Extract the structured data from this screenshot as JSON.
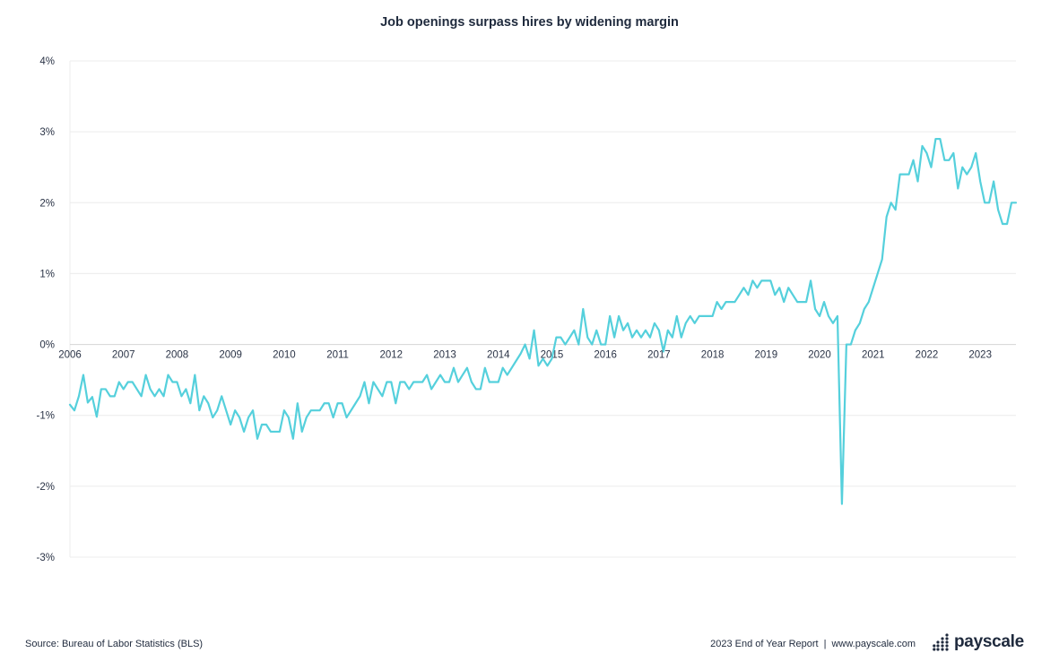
{
  "title": "Job openings surpass hires by widening margin",
  "footer": {
    "source": "Source: Bureau of Labor Statistics (BLS)",
    "report": "2023 End of Year Report",
    "separator": "|",
    "website": "www.payscale.com",
    "logo_text": "payscale"
  },
  "colors": {
    "line": "#55d0dc",
    "grid": "#ececec",
    "zero_line": "#d4d4d4",
    "text": "#1f2a3d"
  },
  "chart_data": {
    "type": "line",
    "title": "Job openings surpass hires by widening margin",
    "xlabel": "",
    "ylabel": "",
    "y_unit": "%",
    "ylim": [
      -3,
      4
    ],
    "yticks": [
      4,
      3,
      2,
      1,
      0,
      -1,
      -2,
      -3
    ],
    "ytick_labels": [
      "4%",
      "3%",
      "2%",
      "1%",
      "0%",
      "-1%",
      "-2%",
      "-3%"
    ],
    "xlim": [
      "2006-01",
      "2023-09"
    ],
    "xtick_labels": [
      "2006",
      "2007",
      "2008",
      "2009",
      "2010",
      "2011",
      "2012",
      "2013",
      "2014",
      "2015",
      "2016",
      "2017",
      "2018",
      "2019",
      "2020",
      "2021",
      "2022",
      "2023"
    ],
    "grid": "horizontal",
    "legend": "none",
    "x_start": "2006-01",
    "x_step": "month",
    "series": [
      {
        "values": [
          -0.85,
          -0.93,
          -0.73,
          -0.43,
          -0.82,
          -0.74,
          -1.02,
          -0.63,
          -0.63,
          -0.73,
          -0.73,
          -0.53,
          -0.63,
          -0.53,
          -0.53,
          -0.63,
          -0.73,
          -0.43,
          -0.63,
          -0.73,
          -0.63,
          -0.73,
          -0.43,
          -0.53,
          -0.53,
          -0.73,
          -0.63,
          -0.83,
          -0.43,
          -0.93,
          -0.73,
          -0.83,
          -1.03,
          -0.93,
          -0.73,
          -0.93,
          -1.13,
          -0.93,
          -1.03,
          -1.23,
          -1.03,
          -0.93,
          -1.33,
          -1.13,
          -1.13,
          -1.23,
          -1.23,
          -1.23,
          -0.93,
          -1.03,
          -1.33,
          -0.83,
          -1.23,
          -1.03,
          -0.93,
          -0.93,
          -0.93,
          -0.83,
          -0.83,
          -1.03,
          -0.83,
          -0.83,
          -1.03,
          -0.93,
          -0.83,
          -0.73,
          -0.53,
          -0.83,
          -0.53,
          -0.63,
          -0.73,
          -0.53,
          -0.53,
          -0.83,
          -0.53,
          -0.53,
          -0.63,
          -0.53,
          -0.53,
          -0.53,
          -0.43,
          -0.63,
          -0.53,
          -0.43,
          -0.53,
          -0.53,
          -0.33,
          -0.53,
          -0.43,
          -0.33,
          -0.53,
          -0.63,
          -0.63,
          -0.33,
          -0.53,
          -0.53,
          -0.53,
          -0.33,
          -0.43,
          -0.33,
          -0.23,
          -0.13,
          0.0,
          -0.2,
          0.2,
          -0.3,
          -0.2,
          -0.3,
          -0.2,
          0.1,
          0.1,
          0.0,
          0.1,
          0.2,
          0.0,
          0.5,
          0.1,
          0.0,
          0.2,
          0.0,
          0.0,
          0.4,
          0.1,
          0.4,
          0.2,
          0.3,
          0.1,
          0.2,
          0.1,
          0.2,
          0.1,
          0.3,
          0.2,
          -0.1,
          0.2,
          0.1,
          0.4,
          0.1,
          0.3,
          0.4,
          0.3,
          0.4,
          0.4,
          0.4,
          0.4,
          0.6,
          0.5,
          0.6,
          0.6,
          0.6,
          0.7,
          0.8,
          0.7,
          0.9,
          0.8,
          0.9,
          0.9,
          0.9,
          0.7,
          0.8,
          0.6,
          0.8,
          0.7,
          0.6,
          0.6,
          0.6,
          0.9,
          0.5,
          0.4,
          0.6,
          0.4,
          0.3,
          0.4,
          -2.25,
          0.0,
          0.0,
          0.2,
          0.3,
          0.5,
          0.6,
          0.8,
          1.0,
          1.2,
          1.8,
          2.0,
          1.9,
          2.4,
          2.4,
          2.4,
          2.6,
          2.3,
          2.8,
          2.7,
          2.5,
          2.9,
          2.9,
          2.6,
          2.6,
          2.7,
          2.2,
          2.5,
          2.4,
          2.5,
          2.7,
          2.3,
          2.0,
          2.0,
          2.3,
          1.9,
          1.7,
          1.7,
          2.0,
          2.0
        ]
      }
    ]
  }
}
